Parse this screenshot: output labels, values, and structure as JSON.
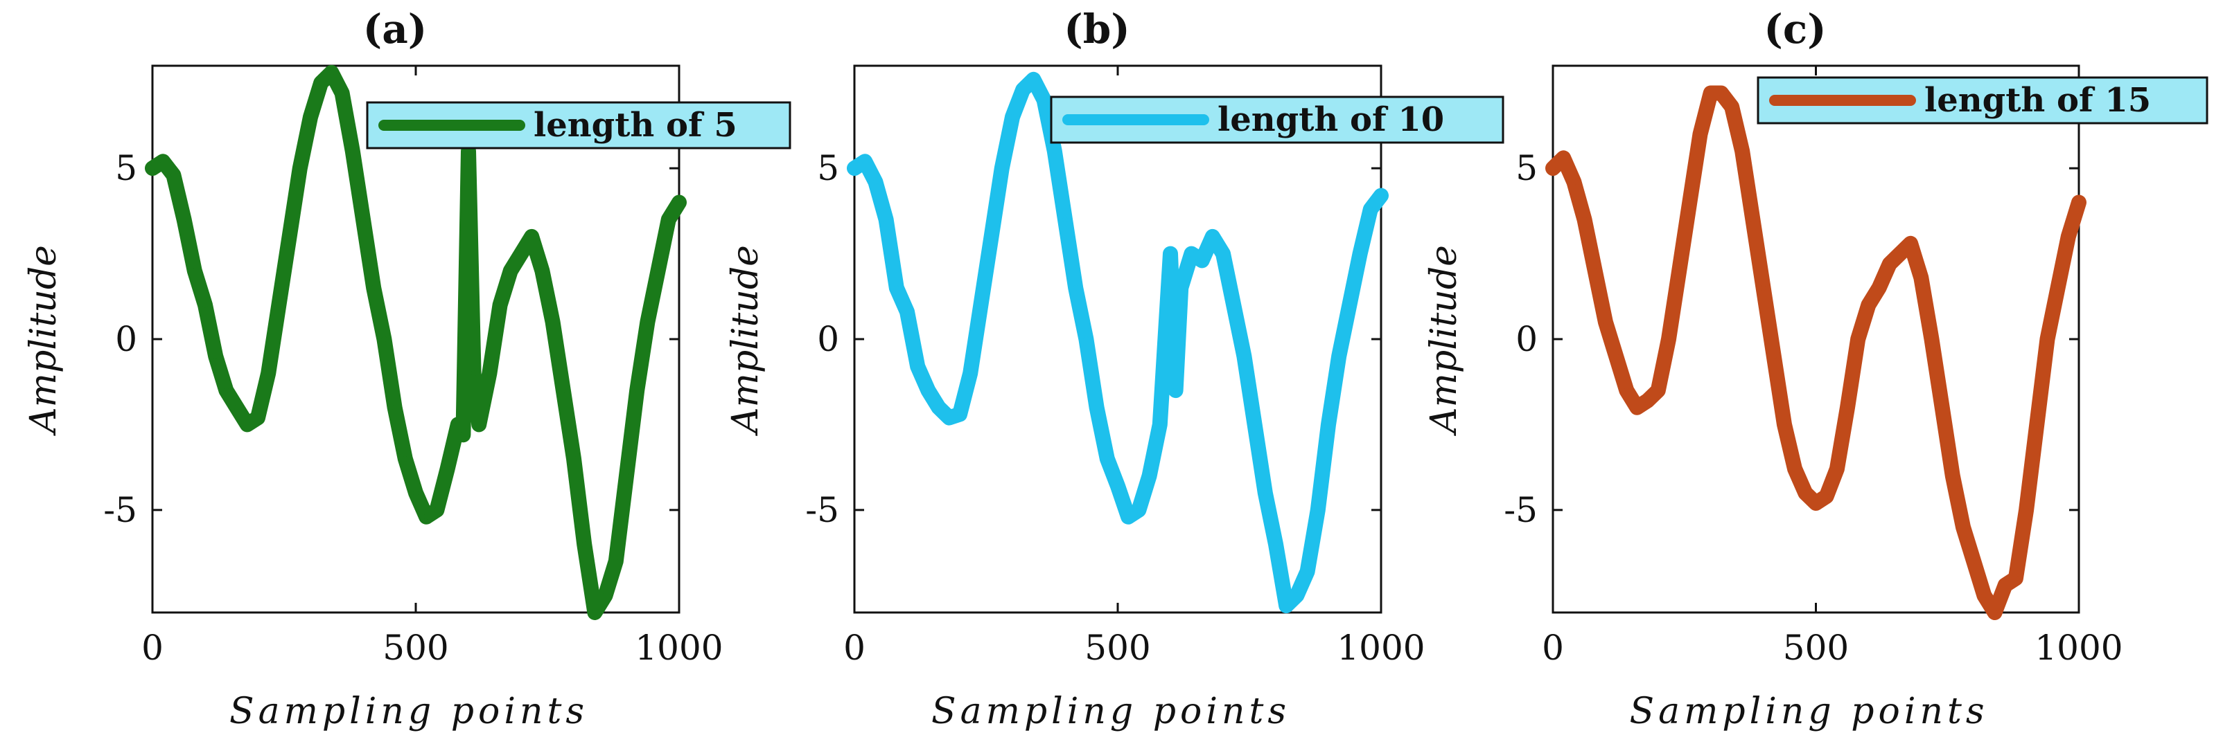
{
  "chart_data": [
    {
      "type": "line",
      "title": "(a)",
      "xlabel": "Sampling points",
      "ylabel": "Amplitude",
      "xlim": [
        0,
        1000
      ],
      "ylim": [
        -8,
        8
      ],
      "xticks": [
        0,
        500,
        1000
      ],
      "yticks": [
        -5,
        0,
        5
      ],
      "legend": "top-right",
      "series": [
        {
          "name": "length of 5",
          "color": "#1a7a1a",
          "x": [
            0,
            20,
            40,
            60,
            80,
            100,
            120,
            140,
            160,
            180,
            200,
            220,
            240,
            260,
            280,
            300,
            320,
            340,
            360,
            380,
            400,
            420,
            440,
            460,
            480,
            500,
            520,
            540,
            560,
            580,
            590,
            600,
            610,
            620,
            640,
            660,
            680,
            700,
            720,
            740,
            760,
            780,
            800,
            820,
            840,
            860,
            880,
            900,
            920,
            940,
            960,
            980,
            1000
          ],
          "y": [
            5,
            5.2,
            4.8,
            3.5,
            2,
            1,
            -0.5,
            -1.5,
            -2,
            -2.5,
            -2.3,
            -1,
            1,
            3,
            5,
            6.5,
            7.5,
            7.8,
            7.2,
            5.5,
            3.5,
            1.5,
            0,
            -2,
            -3.5,
            -4.5,
            -5.2,
            -5,
            -3.8,
            -2.5,
            -2.8,
            5.5,
            -1,
            -2.5,
            -1,
            1,
            2,
            2.5,
            3,
            2,
            0.5,
            -1.5,
            -3.5,
            -6,
            -8,
            -7.5,
            -6.5,
            -4,
            -1.5,
            0.5,
            2,
            3.5,
            4
          ]
        }
      ]
    },
    {
      "type": "line",
      "title": "(b)",
      "xlabel": "Sampling points",
      "ylabel": "Amplitude",
      "xlim": [
        0,
        1000
      ],
      "ylim": [
        -8,
        8
      ],
      "xticks": [
        0,
        500,
        1000
      ],
      "yticks": [
        -5,
        0,
        5
      ],
      "legend": "top-right",
      "series": [
        {
          "name": "length of 10",
          "color": "#1ec0ec",
          "x": [
            0,
            20,
            40,
            60,
            80,
            100,
            120,
            140,
            160,
            180,
            200,
            220,
            240,
            260,
            280,
            300,
            320,
            340,
            360,
            380,
            400,
            420,
            440,
            460,
            480,
            500,
            520,
            540,
            560,
            580,
            600,
            610,
            620,
            640,
            660,
            680,
            700,
            720,
            740,
            760,
            780,
            800,
            820,
            840,
            860,
            880,
            900,
            920,
            940,
            960,
            980,
            1000
          ],
          "y": [
            5,
            5.2,
            4.6,
            3.5,
            1.5,
            0.8,
            -0.8,
            -1.5,
            -2,
            -2.3,
            -2.2,
            -1,
            1,
            3,
            5,
            6.5,
            7.3,
            7.6,
            7,
            5.5,
            3.5,
            1.5,
            0,
            -2,
            -3.5,
            -4.3,
            -5.2,
            -5,
            -4,
            -2.5,
            2.5,
            -1.5,
            1.5,
            2.5,
            2.3,
            3,
            2.5,
            1,
            -0.5,
            -2.5,
            -4.5,
            -6,
            -7.8,
            -7.5,
            -6.8,
            -5,
            -2.5,
            -0.5,
            1,
            2.5,
            3.8,
            4.2
          ]
        }
      ]
    },
    {
      "type": "line",
      "title": "(c)",
      "xlabel": "Sampling points",
      "ylabel": "Amplitude",
      "xlim": [
        0,
        1000
      ],
      "ylim": [
        -8,
        8
      ],
      "xticks": [
        0,
        500,
        1000
      ],
      "yticks": [
        -5,
        0,
        5
      ],
      "legend": "top-right",
      "series": [
        {
          "name": "length of 15",
          "color": "#c04a1a",
          "x": [
            0,
            20,
            40,
            60,
            80,
            100,
            120,
            140,
            160,
            180,
            200,
            220,
            240,
            260,
            280,
            300,
            320,
            340,
            360,
            380,
            400,
            420,
            440,
            460,
            480,
            500,
            520,
            540,
            560,
            580,
            600,
            620,
            640,
            660,
            680,
            700,
            720,
            740,
            760,
            780,
            800,
            820,
            840,
            860,
            880,
            900,
            920,
            940,
            960,
            980,
            1000
          ],
          "y": [
            5,
            5.3,
            4.6,
            3.5,
            2,
            0.5,
            -0.5,
            -1.5,
            -2,
            -1.8,
            -1.5,
            0,
            2,
            4,
            6,
            7.2,
            7.2,
            6.8,
            5.5,
            3.5,
            1.5,
            -0.5,
            -2.5,
            -3.8,
            -4.5,
            -4.8,
            -4.6,
            -3.8,
            -2,
            0,
            1,
            1.5,
            2.2,
            2.5,
            2.8,
            1.8,
            0,
            -2,
            -4,
            -5.5,
            -6.5,
            -7.5,
            -8,
            -7.2,
            -7,
            -5,
            -2.5,
            0,
            1.5,
            3,
            4
          ]
        }
      ]
    }
  ]
}
